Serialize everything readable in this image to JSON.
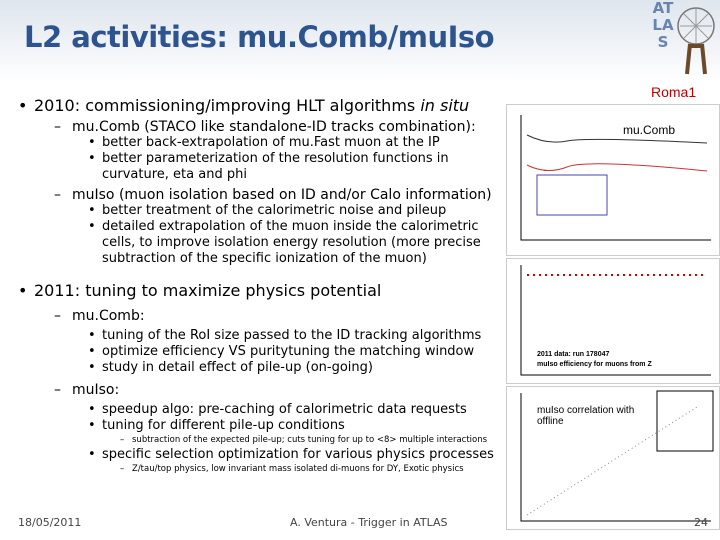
{
  "header": {
    "title": "L2 activities: mu.Comb/muIso",
    "logo": "ATLAS"
  },
  "body": {
    "items": [
      {
        "text": "2010: commissioning/improving HLT algorithms ",
        "emphasis": "in situ",
        "children": [
          {
            "text": "mu.Comb (STACO like standalone-ID tracks combination):",
            "children": [
              {
                "text": "better back-extrapolation of mu.Fast muon at the IP"
              },
              {
                "text": "better parameterization of the resolution functions in curvature, eta and phi"
              }
            ]
          },
          {
            "text": "muIso (muon isolation based on ID and/or Calo information)",
            "children": [
              {
                "text": "better treatment of the calorimetric noise and pileup"
              },
              {
                "text": "detailed extrapolation of the muon inside the calorimetric cells, to improve isolation energy resolution (more precise subtraction of the specific ionization of the muon)"
              }
            ]
          }
        ]
      },
      {
        "text": "2011: tuning to maximize physics potential",
        "children": [
          {
            "text": "mu.Comb:",
            "children": [
              {
                "text": "tuning of the RoI size passed to the ID tracking algorithms"
              },
              {
                "text": "optimize efficiency VS puritytuning the matching window"
              },
              {
                "text": "study in detail effect of pile-up (on-going)"
              }
            ]
          },
          {
            "text": "muIso:",
            "children": [
              {
                "text": "speedup algo: pre-caching of calorimetric data requests"
              },
              {
                "text": "tuning for different pile-up conditions",
                "children": [
                  {
                    "text": "subtraction of the expected pile-up; cuts tuning for up to <8> multiple interactions"
                  }
                ]
              },
              {
                "text": "specific selection optimization for various physics processes",
                "children": [
                  {
                    "text": "Z/tau/top physics, low invariant mass isolated di-muons for DY, Exotic physics"
                  }
                ]
              }
            ]
          }
        ]
      }
    ]
  },
  "figures": {
    "group": "Roma1",
    "plot1": "mu.Comb",
    "plot2_run": "2011 data: run 178047",
    "plot2_title": "muIso efficiency for muons from Z",
    "plot3": "muIso correlation with offline"
  },
  "footer": {
    "date": "18/05/2011",
    "author": "A. Ventura - Trigger in ATLAS",
    "page": "24"
  }
}
